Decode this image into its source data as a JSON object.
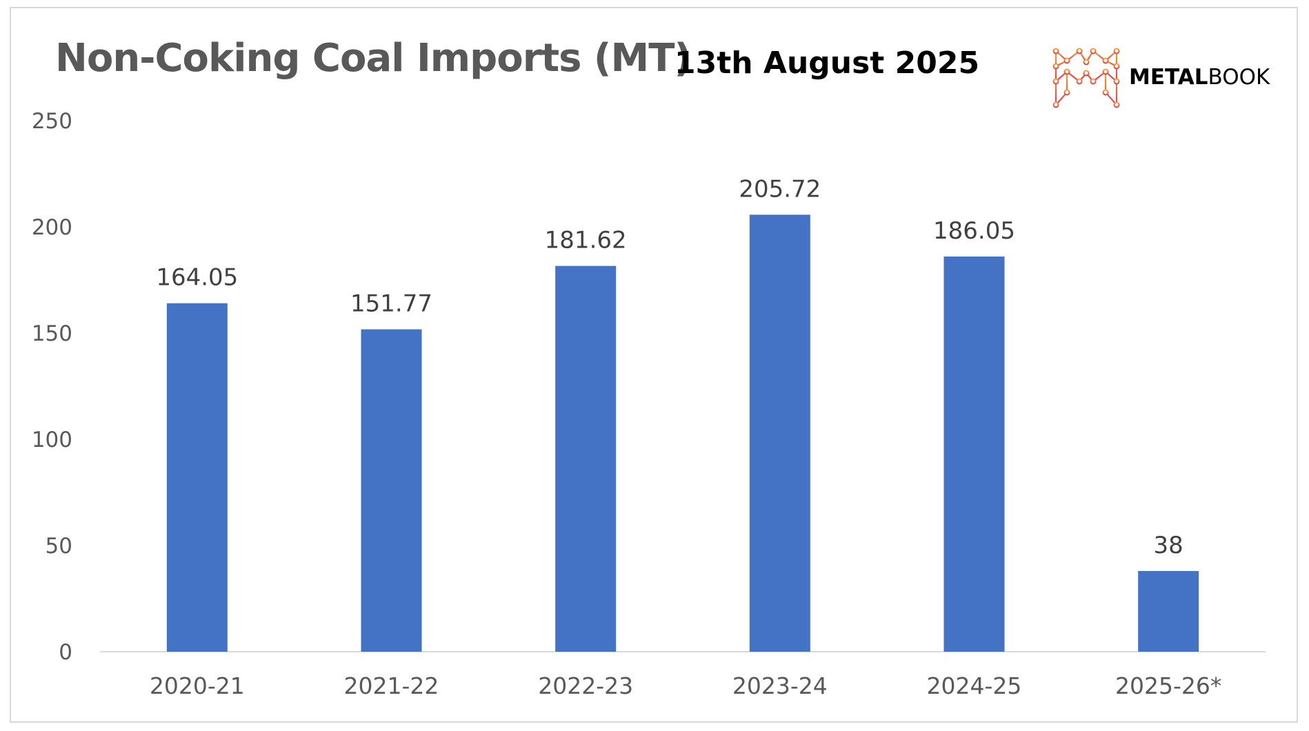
{
  "header": {
    "title": "Non-Coking Coal Imports (MT)",
    "date": "13th August 2025"
  },
  "logo": {
    "name_part1": "METAL",
    "name_part2": "BOOK",
    "icon": "metalbook-m-network-icon"
  },
  "colors": {
    "bar": "#4472c4",
    "axis": "#d9d9d9",
    "logo_gradient_top": "#f5a623",
    "logo_gradient_bottom": "#e8385a"
  },
  "chart_data": {
    "type": "bar",
    "categories": [
      "2020-21",
      "2021-22",
      "2022-23",
      "2023-24",
      "2024-25",
      "2025-26*"
    ],
    "values": [
      164.05,
      151.77,
      181.62,
      205.72,
      186.05,
      38
    ],
    "data_labels": [
      "164.05",
      "151.77",
      "181.62",
      "205.72",
      "186.05",
      "38"
    ],
    "y_ticks": [
      0,
      50,
      100,
      150,
      200,
      250
    ],
    "ylim": [
      0,
      250
    ],
    "grid": false,
    "legend": "none"
  }
}
